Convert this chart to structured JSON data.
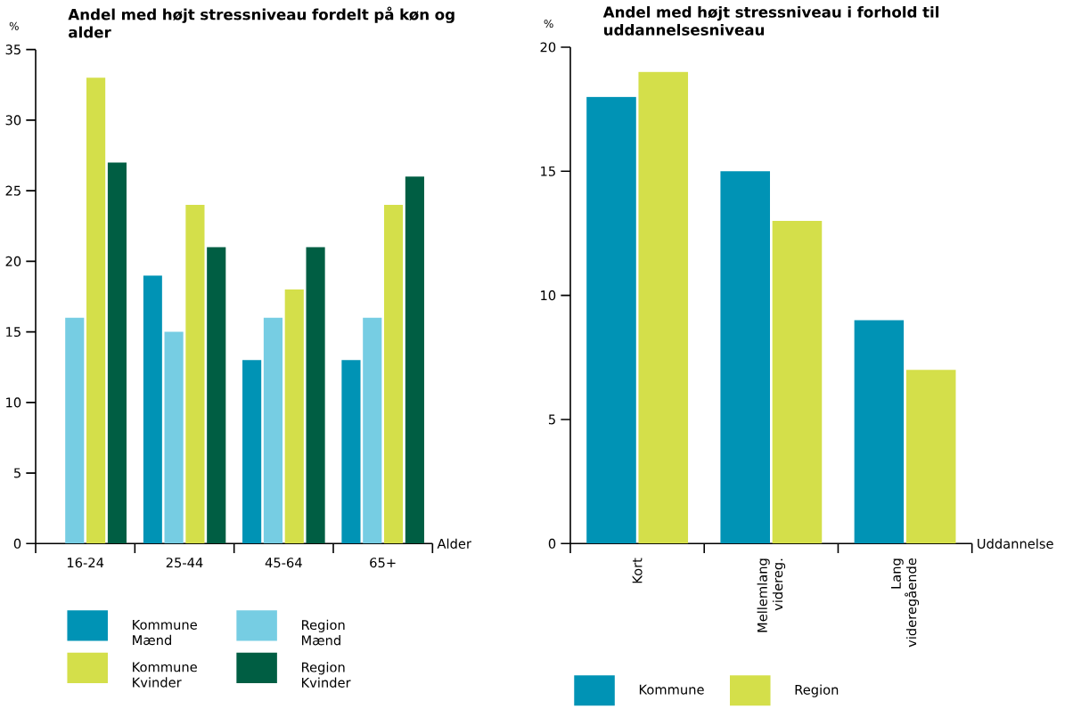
{
  "chart_data": [
    {
      "type": "bar",
      "title": "Andel med højt stressniveau fordelt på køn og alder",
      "ylabel": "%",
      "xlabel": "Alder",
      "categories": [
        "16-24",
        "25-44",
        "45-64",
        "65+"
      ],
      "ylim": [
        0,
        35
      ],
      "yticks": [
        0,
        5,
        10,
        15,
        20,
        25,
        30,
        35
      ],
      "grid": false,
      "legend": "bottom",
      "series": [
        {
          "name": "Kommune Mænd",
          "color": "#0093b5",
          "values": [
            null,
            19,
            13,
            13
          ]
        },
        {
          "name": "Region Mænd",
          "color": "#76cde3",
          "values": [
            16,
            15,
            16,
            16
          ]
        },
        {
          "name": "Kommune Kvinder",
          "color": "#d4df4a",
          "values": [
            33,
            24,
            18,
            24
          ]
        },
        {
          "name": "Region Kvinder",
          "color": "#005e43",
          "values": [
            27,
            21,
            21,
            26
          ]
        }
      ]
    },
    {
      "type": "bar",
      "title": "Andel med højt stressniveau i forhold til uddannelsesniveau",
      "ylabel": "%",
      "xlabel": "Uddannelse",
      "categories": [
        "Kort",
        "Mellemlang videreg.",
        "Lang videregående"
      ],
      "ylim": [
        0,
        20
      ],
      "yticks": [
        0,
        5,
        10,
        15,
        20
      ],
      "grid": false,
      "legend": "bottom",
      "series": [
        {
          "name": "Kommune",
          "color": "#0093b5",
          "values": [
            18,
            15,
            9
          ]
        },
        {
          "name": "Region",
          "color": "#d4df4a",
          "values": [
            19,
            13,
            7
          ]
        }
      ]
    }
  ]
}
